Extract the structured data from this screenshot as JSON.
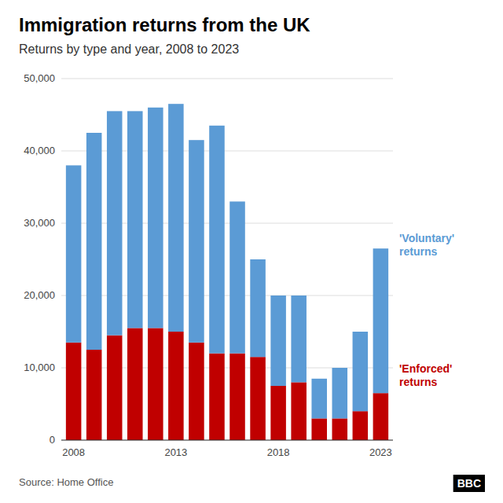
{
  "chart_data": {
    "type": "bar",
    "stacked": true,
    "title": "Immigration returns from the UK",
    "subtitle": "Returns by type and year, 2008 to 2023",
    "annotations": [
      "Source: Home Office",
      "BBC"
    ],
    "categories": [
      "2008",
      null,
      null,
      null,
      null,
      "2013",
      null,
      null,
      null,
      null,
      "2018",
      null,
      null,
      null,
      null,
      "2023"
    ],
    "series": [
      {
        "name": "'Enforced'\nreturns",
        "color": "#c00000",
        "values": [
          13500,
          12500,
          14500,
          15500,
          15500,
          15000,
          13500,
          12000,
          12000,
          11500,
          7500,
          8000,
          3000,
          3000,
          4000,
          6500
        ]
      },
      {
        "name": "'Voluntary'\nreturns",
        "color": "#5b9bd5",
        "values": [
          24500,
          30000,
          31000,
          30000,
          30500,
          31500,
          28000,
          31500,
          21000,
          13500,
          12500,
          12000,
          5500,
          7000,
          11000,
          20000
        ]
      }
    ],
    "ylim": [
      0,
      50000
    ],
    "yticks": [
      0,
      {
        "value": 10000,
        "label": "10,000"
      },
      {
        "value": 20000,
        "label": "20,000"
      },
      {
        "value": 30000,
        "label": "30,000"
      },
      {
        "value": 40000,
        "label": "40,000"
      },
      {
        "value": 50000,
        "label": "50,000"
      }
    ],
    "grid": true
  }
}
